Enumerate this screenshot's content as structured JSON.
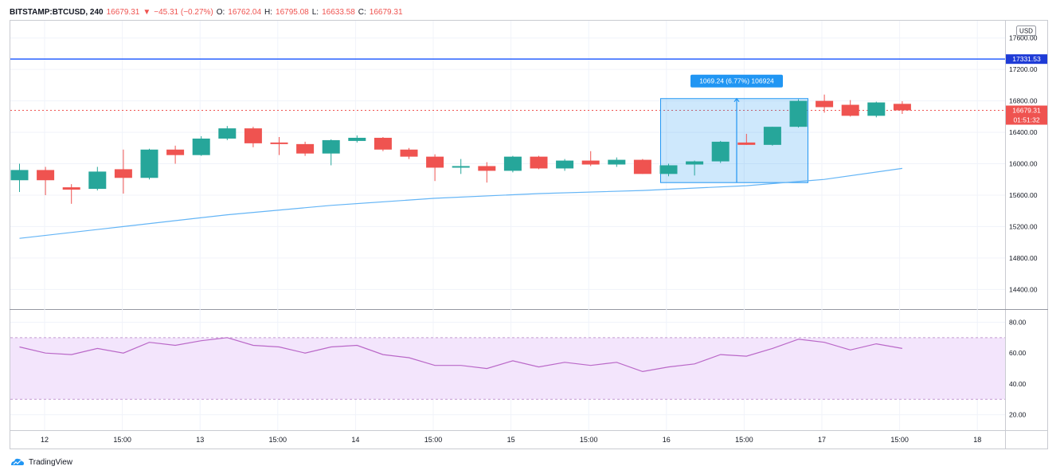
{
  "header": {
    "symbol": "BITSTAMP:BTCUSD, 240",
    "last": "16679.31",
    "change_arrow": "▼",
    "change": "−45.31 (−0.27%)",
    "o_label": "O:",
    "o_value": "16762.04",
    "h_label": "H:",
    "h_value": "16795.08",
    "l_label": "L:",
    "l_value": "16633.58",
    "c_label": "C:",
    "c_value": "16679.31"
  },
  "currency_label": "USD",
  "price_ticks": [
    "17600.00",
    "17200.00",
    "16800.00",
    "16400.00",
    "16000.00",
    "15600.00",
    "15200.00",
    "14800.00",
    "14400.00"
  ],
  "rsi_ticks": [
    "80.00",
    "60.00",
    "40.00",
    "20.00"
  ],
  "x_ticks": [
    "12",
    "15:00",
    "13",
    "15:00",
    "14",
    "15:00",
    "15",
    "15:00",
    "16",
    "15:00",
    "17",
    "15:00",
    "18"
  ],
  "horizontal_line": {
    "label": "17331.53",
    "value": 17331.53,
    "color": "#2962ff"
  },
  "last_price_label": {
    "price": "16679.31",
    "countdown": "01:51:32",
    "color": "#ef5350"
  },
  "measure_box": {
    "label": "1069.24 (6.77%) 106924",
    "color": "#2196f3"
  },
  "footer": {
    "brand": "TradingView",
    "logo_icon": "tradingview-logo-icon"
  },
  "colors": {
    "up": "#26a69a",
    "down": "#ef5350",
    "ma": "#64b5f6",
    "rsi": "#ba68c8",
    "rsi_band": "#f3e5fc"
  },
  "chart_data": [
    {
      "type": "candlestick",
      "y_axis_ticks": [
        14400,
        14800,
        15200,
        15600,
        16000,
        16400,
        16800,
        17200,
        17600
      ],
      "ylim": [
        14150,
        17820
      ],
      "candles": [
        {
          "o": 15790,
          "h": 16000,
          "l": 15640,
          "c": 15920
        },
        {
          "o": 15920,
          "h": 15960,
          "l": 15600,
          "c": 15790
        },
        {
          "o": 15700,
          "h": 15740,
          "l": 15490,
          "c": 15670
        },
        {
          "o": 15680,
          "h": 15960,
          "l": 15660,
          "c": 15900
        },
        {
          "o": 15930,
          "h": 16180,
          "l": 15620,
          "c": 15820
        },
        {
          "o": 15820,
          "h": 16190,
          "l": 15800,
          "c": 16180
        },
        {
          "o": 16180,
          "h": 16230,
          "l": 16000,
          "c": 16110
        },
        {
          "o": 16110,
          "h": 16350,
          "l": 16100,
          "c": 16320
        },
        {
          "o": 16320,
          "h": 16480,
          "l": 16300,
          "c": 16450
        },
        {
          "o": 16450,
          "h": 16470,
          "l": 16210,
          "c": 16260
        },
        {
          "o": 16270,
          "h": 16340,
          "l": 16110,
          "c": 16250
        },
        {
          "o": 16250,
          "h": 16280,
          "l": 16100,
          "c": 16130
        },
        {
          "o": 16130,
          "h": 16310,
          "l": 15980,
          "c": 16300
        },
        {
          "o": 16290,
          "h": 16360,
          "l": 16270,
          "c": 16330
        },
        {
          "o": 16330,
          "h": 16340,
          "l": 16160,
          "c": 16180
        },
        {
          "o": 16180,
          "h": 16200,
          "l": 16060,
          "c": 16090
        },
        {
          "o": 16090,
          "h": 16120,
          "l": 15780,
          "c": 15950
        },
        {
          "o": 15950,
          "h": 16060,
          "l": 15870,
          "c": 15970
        },
        {
          "o": 15970,
          "h": 16020,
          "l": 15760,
          "c": 15910
        },
        {
          "o": 15910,
          "h": 16100,
          "l": 15890,
          "c": 16090
        },
        {
          "o": 16090,
          "h": 16100,
          "l": 15930,
          "c": 15940
        },
        {
          "o": 15940,
          "h": 16060,
          "l": 15910,
          "c": 16040
        },
        {
          "o": 16040,
          "h": 16160,
          "l": 15970,
          "c": 15990
        },
        {
          "o": 15990,
          "h": 16080,
          "l": 15960,
          "c": 16050
        },
        {
          "o": 16050,
          "h": 16060,
          "l": 15870,
          "c": 15870
        },
        {
          "o": 15870,
          "h": 16000,
          "l": 15840,
          "c": 15980
        },
        {
          "o": 15990,
          "h": 16040,
          "l": 15850,
          "c": 16030
        },
        {
          "o": 16030,
          "h": 16290,
          "l": 16010,
          "c": 16280
        },
        {
          "o": 16270,
          "h": 16380,
          "l": 16240,
          "c": 16240
        },
        {
          "o": 16240,
          "h": 16470,
          "l": 16230,
          "c": 16470
        },
        {
          "o": 16470,
          "h": 16820,
          "l": 16460,
          "c": 16800
        },
        {
          "o": 16800,
          "h": 16880,
          "l": 16650,
          "c": 16720
        },
        {
          "o": 16750,
          "h": 16810,
          "l": 16600,
          "c": 16610
        },
        {
          "o": 16610,
          "h": 16790,
          "l": 16590,
          "c": 16780
        },
        {
          "o": 16762.04,
          "h": 16795.08,
          "l": 16633.58,
          "c": 16679.31
        }
      ],
      "moving_average": [
        [
          0,
          15050
        ],
        [
          4,
          15200
        ],
        [
          8,
          15350
        ],
        [
          12,
          15470
        ],
        [
          16,
          15560
        ],
        [
          20,
          15620
        ],
        [
          24,
          15660
        ],
        [
          28,
          15720
        ],
        [
          31,
          15800
        ],
        [
          34,
          15940
        ]
      ],
      "measure": {
        "from_index": 25,
        "to_index": 30,
        "from_price": 15760,
        "to_price": 16829,
        "change": 1069.24,
        "percent": 6.77
      }
    },
    {
      "type": "line",
      "name": "RSI",
      "y_axis_ticks": [
        20,
        40,
        60,
        80
      ],
      "ylim": [
        10,
        88
      ],
      "band": [
        30,
        70
      ],
      "values": [
        64,
        60,
        59,
        63,
        60,
        67,
        65,
        68,
        70,
        65,
        64,
        60,
        64,
        65,
        59,
        57,
        52,
        52,
        50,
        55,
        51,
        54,
        52,
        54,
        48,
        51,
        53,
        59,
        58,
        63,
        69,
        67,
        62,
        66,
        63
      ]
    }
  ]
}
